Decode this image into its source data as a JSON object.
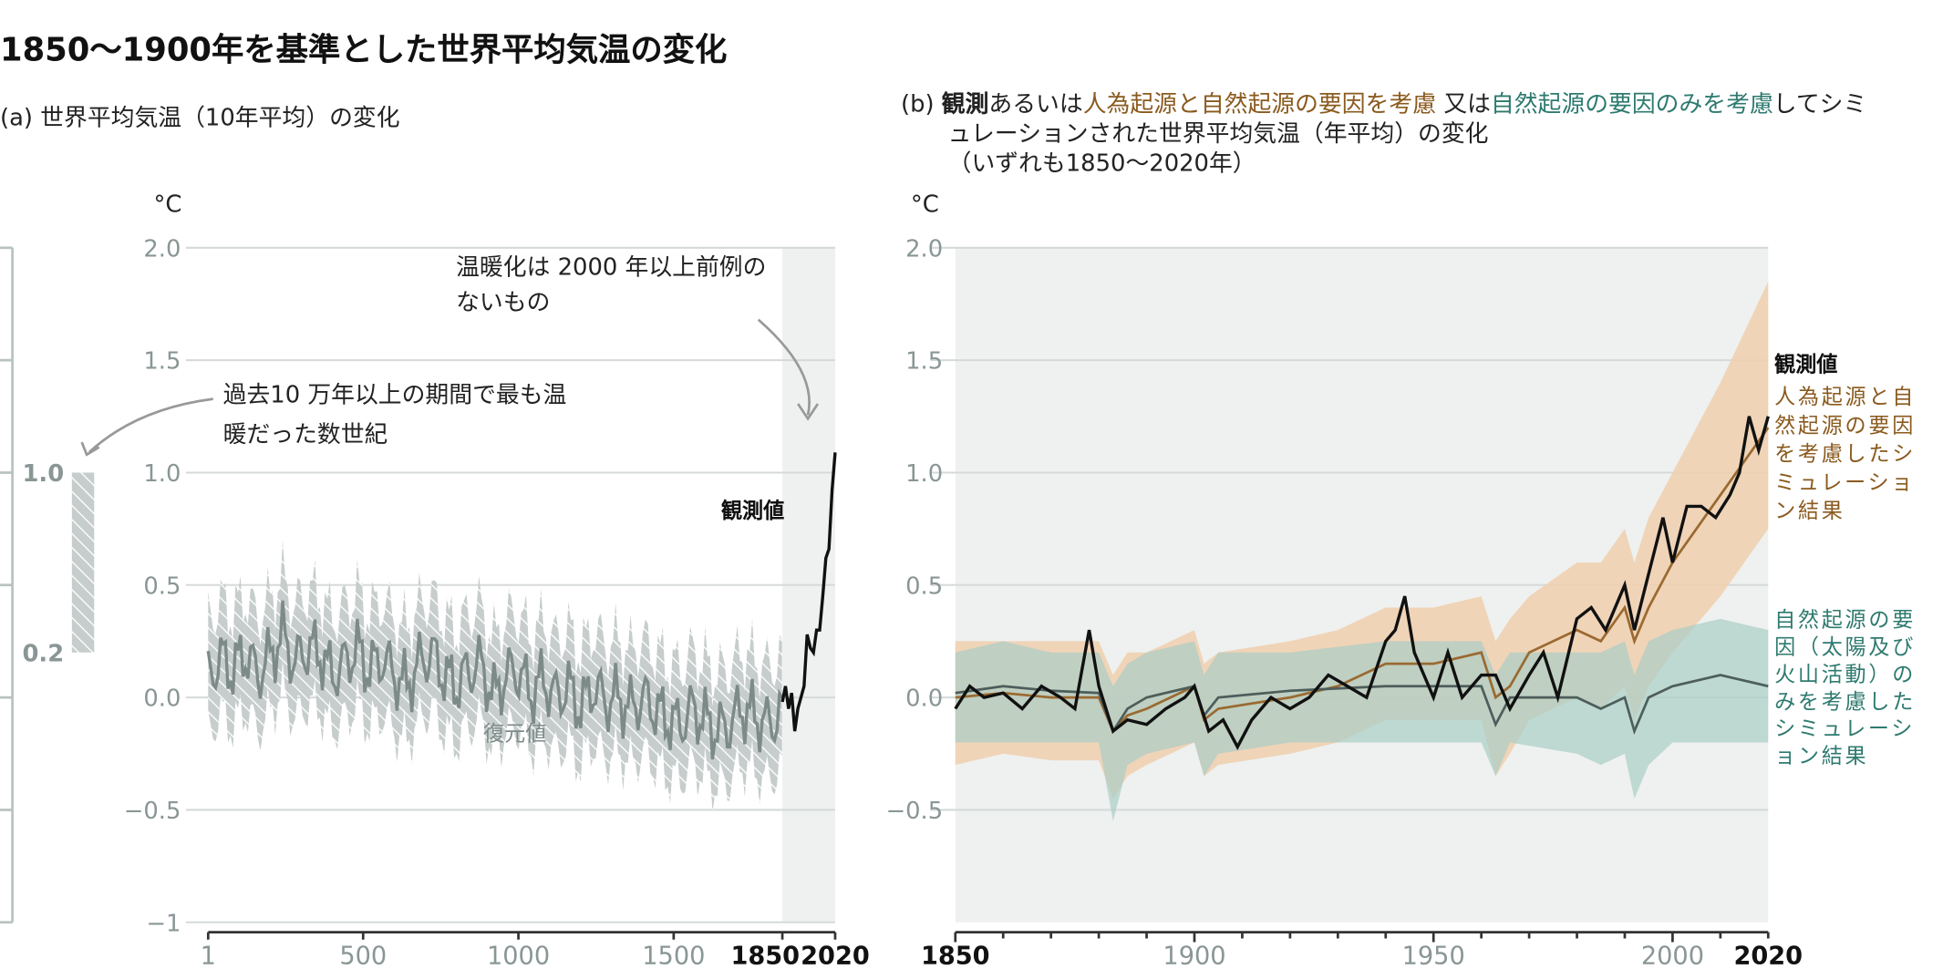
{
  "title": "1850〜1900年を基準とした世界平均気温の変化",
  "subtitle_a": "(a) 世界平均気温（10年平均）の変化",
  "subtitle_b": {
    "prefix": "(b) ",
    "observed": "観測",
    "t1": "あるいは",
    "human": "人為起源と自然起源の要因を考慮",
    "t2": " 又は",
    "natural": "自然起源の要因のみを考慮",
    "t3": "してシミュレーションされた世界平均気温（年平均）の変化",
    "t4": "（いずれも1850〜2020年）"
  },
  "colors": {
    "human": "#8a5a1e",
    "human_band": "#f0cfae",
    "natural": "#2e7a6f",
    "natural_band": "#a9cdc6",
    "recon": "#7d8b88",
    "obs": "#111111",
    "shade": "#eef1ef"
  },
  "chart_data": [
    {
      "type": "line",
      "unit": "°C",
      "ylim": [
        -1,
        2
      ],
      "yticks": [
        "2.0",
        "1.5",
        "1.0",
        "0.5",
        "0.0",
        "−0.5",
        "−1"
      ],
      "yvals": [
        2,
        1.5,
        1,
        0.5,
        0,
        -0.5,
        -1
      ],
      "xlim": [
        1,
        2020
      ],
      "xticks": [
        {
          "v": 1,
          "t": "1",
          "bold": false
        },
        {
          "v": 500,
          "t": "500",
          "bold": false
        },
        {
          "v": 1000,
          "t": "1000",
          "bold": false
        },
        {
          "v": 1500,
          "t": "1500",
          "bold": false
        },
        {
          "v": 1850,
          "t": "1850",
          "bold": true
        },
        {
          "v": 2020,
          "t": "2020",
          "bold": true
        }
      ],
      "reconstructed": {
        "label": "復元値",
        "x": [
          1,
          40,
          80,
          120,
          160,
          200,
          240,
          280,
          320,
          360,
          400,
          440,
          480,
          520,
          560,
          600,
          640,
          680,
          720,
          760,
          800,
          840,
          880,
          920,
          960,
          1000,
          1040,
          1080,
          1120,
          1160,
          1200,
          1240,
          1280,
          1320,
          1360,
          1400,
          1440,
          1480,
          1520,
          1560,
          1600,
          1640,
          1680,
          1720,
          1760,
          1800,
          1840,
          1870,
          1900,
          1930,
          1960,
          1990,
          2020
        ],
        "y": [
          0.08,
          0.18,
          0.12,
          0.2,
          0.1,
          0.18,
          0.28,
          0.15,
          0.22,
          0.2,
          0.1,
          0.15,
          0.22,
          0.12,
          0.18,
          0.1,
          0.05,
          0.15,
          0.2,
          0.1,
          0.05,
          0.12,
          0.15,
          0.0,
          0.1,
          0.12,
          0.02,
          0.08,
          0.0,
          0.05,
          -0.05,
          0.05,
          -0.02,
          0.0,
          -0.05,
          0.0,
          -0.05,
          -0.1,
          -0.12,
          -0.05,
          -0.1,
          -0.15,
          -0.12,
          -0.05,
          -0.08,
          -0.12,
          -0.08,
          -0.05,
          0.05,
          0.2,
          0.35,
          0.5,
          0.75
        ],
        "band": 0.25
      },
      "observed": {
        "label": "観測値",
        "x": [
          1850,
          1860,
          1870,
          1880,
          1890,
          1900,
          1910,
          1920,
          1930,
          1940,
          1950,
          1960,
          1970,
          1980,
          1990,
          2000,
          2010,
          2020
        ],
        "y": [
          -0.02,
          0.05,
          -0.05,
          0.02,
          -0.15,
          -0.05,
          0.0,
          0.05,
          0.28,
          0.22,
          0.2,
          0.3,
          0.3,
          0.45,
          0.62,
          0.66,
          0.92,
          1.09
        ]
      },
      "paleo_range": {
        "low": 0.2,
        "high": 1.0,
        "low_label": "0.2",
        "high_label": "1.0",
        "label": "過去10 万年以上の期間で最も温暖だった数世紀"
      },
      "annotation": "温暖化は 2000 年以上前例のないもの"
    },
    {
      "type": "line",
      "unit": "°C",
      "ylim": [
        -1,
        2
      ],
      "yticks": [
        "2.0",
        "1.5",
        "1.0",
        "0.5",
        "0.0",
        "−0.5"
      ],
      "yvals": [
        2,
        1.5,
        1,
        0.5,
        0,
        -0.5
      ],
      "xlim": [
        1850,
        2020
      ],
      "xticks": [
        {
          "v": 1850,
          "t": "1850",
          "bold": true
        },
        {
          "v": 1900,
          "t": "1900",
          "bold": false
        },
        {
          "v": 1950,
          "t": "1950",
          "bold": false
        },
        {
          "v": 2000,
          "t": "2000",
          "bold": false
        },
        {
          "v": 2020,
          "t": "2020",
          "bold": true
        }
      ],
      "observed": {
        "label": "観測値",
        "x": [
          1850,
          1853,
          1856,
          1860,
          1864,
          1868,
          1872,
          1875,
          1878,
          1880,
          1883,
          1886,
          1890,
          1894,
          1898,
          1900,
          1903,
          1906,
          1909,
          1912,
          1916,
          1920,
          1924,
          1928,
          1932,
          1936,
          1940,
          1942,
          1944,
          1946,
          1950,
          1953,
          1956,
          1960,
          1963,
          1966,
          1970,
          1973,
          1976,
          1980,
          1983,
          1986,
          1990,
          1992,
          1995,
          1998,
          2000,
          2003,
          2006,
          2009,
          2012,
          2014,
          2016,
          2018,
          2020
        ],
        "y": [
          -0.05,
          0.05,
          0.0,
          0.02,
          -0.05,
          0.05,
          0.0,
          -0.05,
          0.3,
          0.05,
          -0.15,
          -0.1,
          -0.12,
          -0.05,
          0.0,
          0.05,
          -0.15,
          -0.1,
          -0.22,
          -0.1,
          0.0,
          -0.05,
          0.0,
          0.1,
          0.05,
          0.0,
          0.25,
          0.3,
          0.45,
          0.2,
          0.0,
          0.2,
          0.0,
          0.1,
          0.1,
          -0.05,
          0.1,
          0.2,
          0.0,
          0.35,
          0.4,
          0.3,
          0.5,
          0.3,
          0.55,
          0.8,
          0.6,
          0.85,
          0.85,
          0.8,
          0.9,
          1.0,
          1.25,
          1.1,
          1.25
        ]
      },
      "human_natural": {
        "label": "人為起源と自然起源の要因を考慮したシミュレーション結果",
        "x": [
          1850,
          1860,
          1870,
          1880,
          1883,
          1886,
          1890,
          1900,
          1902,
          1905,
          1920,
          1930,
          1940,
          1950,
          1960,
          1963,
          1966,
          1970,
          1980,
          1985,
          1990,
          1992,
          1995,
          2000,
          2010,
          2020
        ],
        "y": [
          0.0,
          0.02,
          0.0,
          0.0,
          -0.15,
          -0.08,
          -0.05,
          0.05,
          -0.1,
          -0.05,
          0.0,
          0.05,
          0.15,
          0.15,
          0.2,
          0.0,
          0.05,
          0.2,
          0.3,
          0.25,
          0.4,
          0.25,
          0.4,
          0.6,
          0.9,
          1.2
        ],
        "band_low": [
          -0.3,
          -0.25,
          -0.28,
          -0.28,
          -0.45,
          -0.35,
          -0.3,
          -0.2,
          -0.35,
          -0.3,
          -0.25,
          -0.2,
          -0.1,
          -0.1,
          -0.1,
          -0.35,
          -0.25,
          -0.1,
          0.0,
          -0.05,
          0.05,
          -0.1,
          0.05,
          0.2,
          0.45,
          0.75
        ],
        "band_high": [
          0.25,
          0.25,
          0.25,
          0.25,
          0.1,
          0.2,
          0.2,
          0.3,
          0.15,
          0.2,
          0.25,
          0.3,
          0.4,
          0.4,
          0.45,
          0.25,
          0.35,
          0.45,
          0.6,
          0.6,
          0.75,
          0.6,
          0.8,
          1.0,
          1.4,
          1.85
        ]
      },
      "natural": {
        "label": "自然起源の要因（太陽及び火山活動）のみを考慮したシミュレーション結果",
        "x": [
          1850,
          1860,
          1870,
          1880,
          1883,
          1886,
          1890,
          1900,
          1902,
          1905,
          1920,
          1940,
          1960,
          1963,
          1966,
          1980,
          1985,
          1990,
          1992,
          1995,
          2000,
          2010,
          2020
        ],
        "y": [
          0.02,
          0.05,
          0.03,
          0.02,
          -0.15,
          -0.05,
          0.0,
          0.05,
          -0.08,
          0.0,
          0.03,
          0.05,
          0.05,
          -0.12,
          0.0,
          0.0,
          -0.05,
          0.0,
          -0.15,
          0.0,
          0.05,
          0.1,
          0.05
        ],
        "band_low": [
          -0.2,
          -0.2,
          -0.2,
          -0.2,
          -0.55,
          -0.3,
          -0.25,
          -0.2,
          -0.35,
          -0.25,
          -0.2,
          -0.2,
          -0.2,
          -0.35,
          -0.2,
          -0.25,
          -0.3,
          -0.25,
          -0.45,
          -0.3,
          -0.2,
          -0.2,
          -0.2
        ],
        "band_high": [
          0.2,
          0.25,
          0.2,
          0.2,
          0.05,
          0.15,
          0.2,
          0.25,
          0.1,
          0.2,
          0.2,
          0.25,
          0.25,
          0.1,
          0.2,
          0.2,
          0.2,
          0.25,
          0.1,
          0.25,
          0.3,
          0.35,
          0.3
        ]
      }
    }
  ]
}
